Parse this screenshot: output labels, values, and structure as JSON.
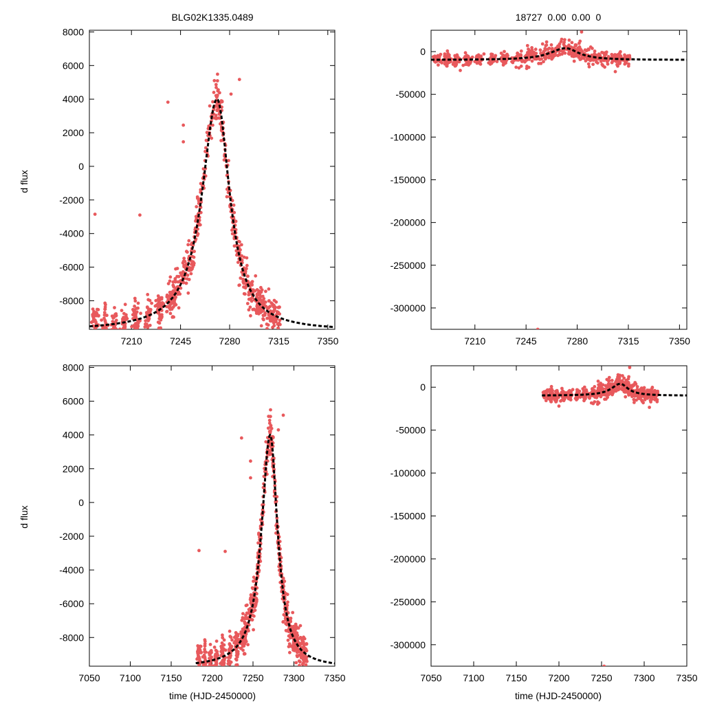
{
  "figure": {
    "top_left_title": "BLG02K1335.0489",
    "top_right_title": "18727  0.00  0.00  0",
    "ylabel": "d flux",
    "xlabel": "time (HJD-2450000)"
  },
  "colors": {
    "points": "#e8595c",
    "model": "#000000",
    "frame": "#000000"
  },
  "chart_data": [
    {
      "id": "top-left",
      "type": "scatter",
      "title": "BLG02K1335.0489",
      "xlim": [
        7180,
        7355
      ],
      "ylim": [
        -9700,
        8100
      ],
      "xticks": [
        7210,
        7245,
        7280,
        7315,
        7350
      ],
      "yticks": [
        8000,
        6000,
        4000,
        2000,
        0,
        -2000,
        -4000,
        -6000,
        -8000
      ],
      "ylabel": "d flux",
      "xlabel": "",
      "model": {
        "t0": 7271,
        "base": -9800,
        "peak": 4000,
        "tE_left": 13,
        "tE_right": 11,
        "t_start": 7180,
        "t_end": 7355
      },
      "series": [
        {
          "name": "season-points",
          "t_range": [
            7181,
            7316
          ],
          "noise": 500,
          "count": 900
        },
        {
          "name": "outliers",
          "points": [
            [
              7184,
              -2850
            ],
            [
              7236,
              3820
            ],
            [
              7216,
              -2900
            ],
            [
              7247,
              2450
            ],
            [
              7247,
              1460
            ],
            [
              7287,
              5170
            ],
            [
              7281,
              4300
            ]
          ]
        }
      ]
    },
    {
      "id": "top-right",
      "type": "scatter",
      "title": "18727  0.00  0.00  0",
      "xlim": [
        7180,
        7355
      ],
      "ylim": [
        -325000,
        25000
      ],
      "xticks": [
        7210,
        7245,
        7280,
        7315,
        7350
      ],
      "yticks": [
        0,
        -50000,
        -100000,
        -150000,
        -200000,
        -250000,
        -300000
      ],
      "ylabel": "",
      "xlabel": "",
      "model": {
        "t0": 7272,
        "base": -9800,
        "peak": 4000,
        "tE_left": 13,
        "tE_right": 11,
        "t_start": 7180,
        "t_end": 7355
      },
      "series": [
        {
          "name": "season-points",
          "t_range": [
            7181,
            7316
          ],
          "noise": 3500,
          "count": 700
        },
        {
          "name": "outliers",
          "points": [
            [
              7253,
              -325000
            ],
            [
              7283,
              23000
            ],
            [
              7246,
              7000
            ],
            [
              7200,
              -22000
            ]
          ]
        }
      ]
    },
    {
      "id": "bottom-left",
      "type": "scatter",
      "title": "",
      "xlim": [
        7050,
        7350
      ],
      "ylim": [
        -9700,
        8100
      ],
      "xticks": [
        7050,
        7100,
        7150,
        7200,
        7250,
        7300,
        7350
      ],
      "yticks": [
        8000,
        6000,
        4000,
        2000,
        0,
        -2000,
        -4000,
        -6000,
        -8000
      ],
      "ylabel": "d flux",
      "xlabel": "time (HJD-2450000)",
      "model": {
        "t0": 7271,
        "base": -9800,
        "peak": 4000,
        "tE_left": 13,
        "tE_right": 11,
        "t_start": 7180,
        "t_end": 7350
      },
      "series": [
        {
          "name": "season-points",
          "t_range": [
            7181,
            7316
          ],
          "noise": 500,
          "count": 900
        },
        {
          "name": "outliers",
          "points": [
            [
              7184,
              -2850
            ],
            [
              7236,
              3820
            ],
            [
              7216,
              -2900
            ],
            [
              7247,
              2450
            ],
            [
              7247,
              1460
            ],
            [
              7287,
              5170
            ],
            [
              7281,
              4300
            ]
          ]
        }
      ]
    },
    {
      "id": "bottom-right",
      "type": "scatter",
      "title": "",
      "xlim": [
        7050,
        7350
      ],
      "ylim": [
        -325000,
        25000
      ],
      "xticks": [
        7050,
        7100,
        7150,
        7200,
        7250,
        7300,
        7350
      ],
      "yticks": [
        0,
        -50000,
        -100000,
        -150000,
        -200000,
        -250000,
        -300000
      ],
      "ylabel": "",
      "xlabel": "time (HJD-2450000)",
      "model": {
        "t0": 7272,
        "base": -9800,
        "peak": 4000,
        "tE_left": 13,
        "tE_right": 11,
        "t_start": 7180,
        "t_end": 7350
      },
      "series": [
        {
          "name": "season-points",
          "t_range": [
            7181,
            7316
          ],
          "noise": 3500,
          "count": 700
        },
        {
          "name": "outliers",
          "points": [
            [
              7253,
              -325000
            ],
            [
              7283,
              23000
            ],
            [
              7246,
              7000
            ],
            [
              7200,
              -22000
            ]
          ]
        }
      ]
    }
  ]
}
